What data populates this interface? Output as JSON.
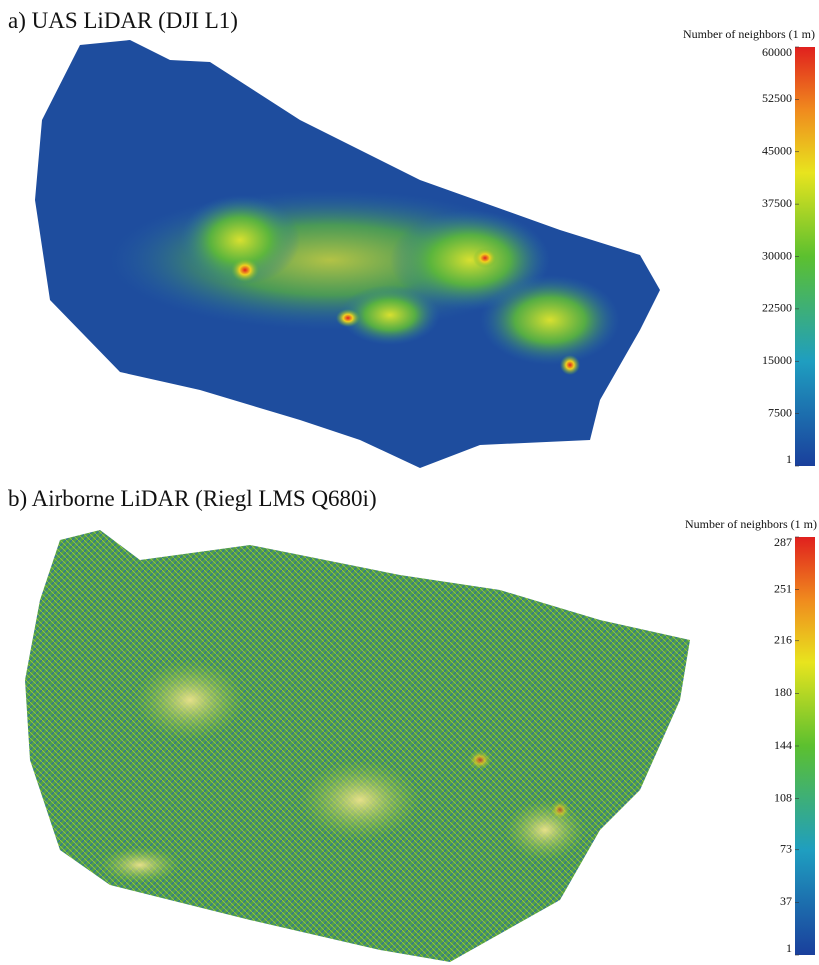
{
  "panels": [
    {
      "title": "a) UAS LiDAR (DJI L1)",
      "colorbar": {
        "label": "Number of neighbors (1 m)",
        "range": [
          1,
          60000
        ],
        "ticks": [
          1,
          7500,
          15000,
          22500,
          30000,
          37500,
          45000,
          52500,
          60000
        ]
      }
    },
    {
      "title": "b) Airborne LiDAR (Riegl LMS Q680i)",
      "colorbar": {
        "label": "Number of neighbors (1 m)",
        "range": [
          1,
          287
        ],
        "ticks": [
          1,
          37,
          73,
          108,
          144,
          180,
          216,
          251,
          287
        ]
      }
    }
  ]
}
